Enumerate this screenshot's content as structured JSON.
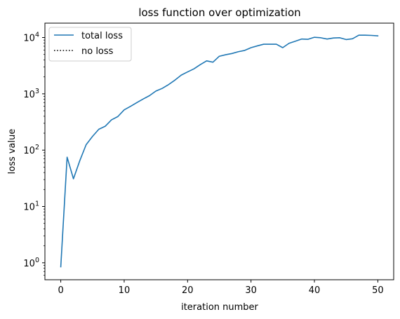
{
  "chart_data": {
    "type": "line",
    "title": "loss function over optimization",
    "xlabel": "iteration number",
    "ylabel": "loss value",
    "xlim": [
      -2.5,
      52.5
    ],
    "ylim": [
      0.5,
      18000
    ],
    "yscale": "log",
    "grid": false,
    "legend": "upper-left",
    "x_ticks": [
      0,
      10,
      20,
      30,
      40,
      50
    ],
    "x_tick_labels": [
      "0",
      "10",
      "20",
      "30",
      "40",
      "50"
    ],
    "y_ticks": [
      1,
      10,
      100,
      1000,
      10000
    ],
    "y_tick_labels": [
      {
        "base": "10",
        "exp": "0"
      },
      {
        "base": "10",
        "exp": "1"
      },
      {
        "base": "10",
        "exp": "2"
      },
      {
        "base": "10",
        "exp": "3"
      },
      {
        "base": "10",
        "exp": "4"
      }
    ],
    "series": [
      {
        "name": "total loss",
        "color": "#1f77b4",
        "style": "solid",
        "x": [
          0,
          1,
          2,
          3,
          4,
          5,
          6,
          7,
          8,
          9,
          10,
          11,
          12,
          13,
          14,
          15,
          16,
          17,
          18,
          19,
          20,
          21,
          22,
          23,
          24,
          25,
          26,
          27,
          28,
          29,
          30,
          31,
          32,
          33,
          34,
          35,
          36,
          37,
          38,
          39,
          40,
          41,
          42,
          43,
          44,
          45,
          46,
          47,
          48,
          49,
          50
        ],
        "y": [
          0.85,
          75,
          31,
          65,
          125,
          175,
          235,
          265,
          345,
          395,
          520,
          600,
          700,
          810,
          930,
          1120,
          1250,
          1460,
          1750,
          2150,
          2450,
          2780,
          3300,
          3850,
          3650,
          4650,
          4950,
          5200,
          5600,
          5900,
          6600,
          7100,
          7600,
          7600,
          7600,
          6600,
          7900,
          8600,
          9400,
          9300,
          10100,
          9900,
          9400,
          9800,
          9900,
          9200,
          9500,
          11000,
          11000,
          10900,
          10700
        ]
      },
      {
        "name": "no loss",
        "color": "#000000",
        "style": "dotted",
        "x": [],
        "y": []
      }
    ]
  }
}
